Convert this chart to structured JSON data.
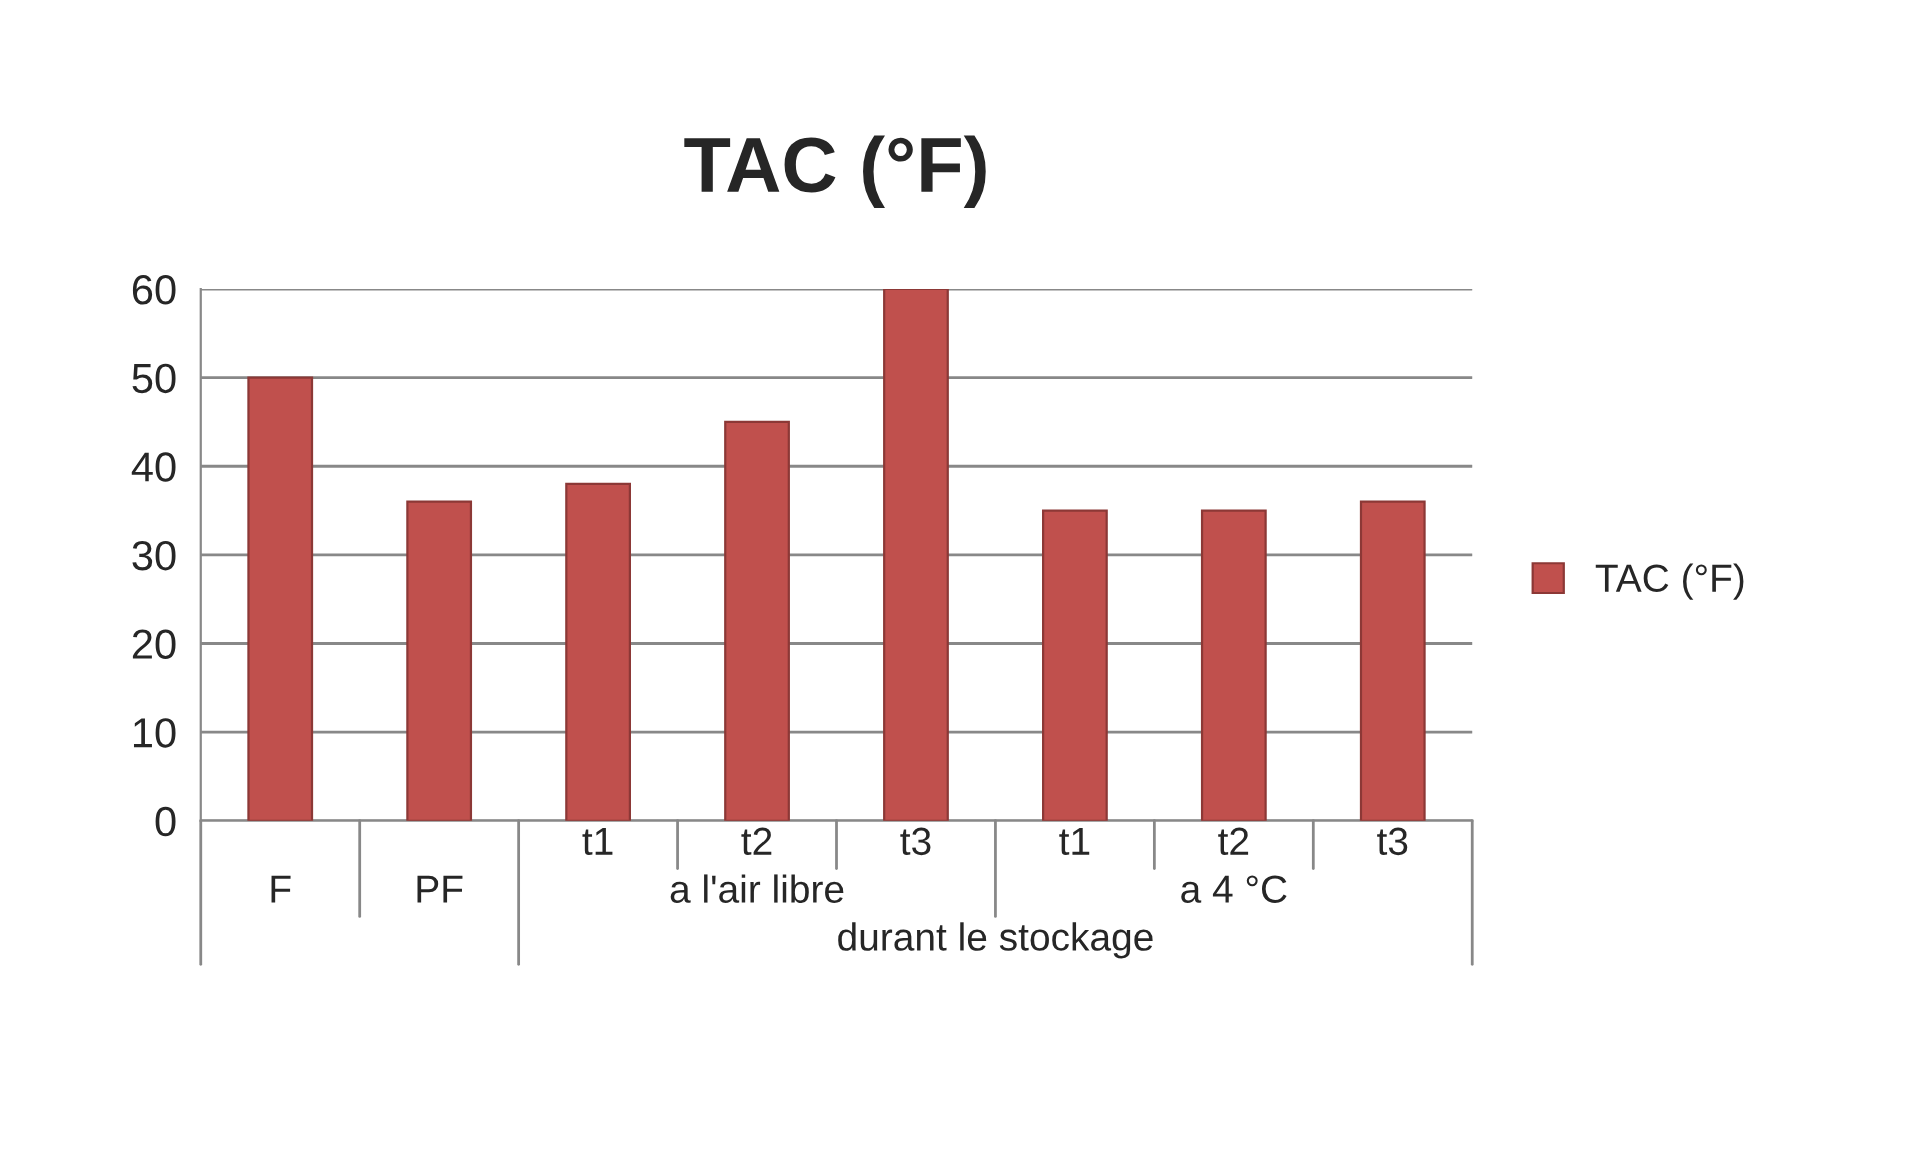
{
  "chart_data": {
    "type": "bar",
    "title": "TAC (°F)",
    "categories": [
      "F",
      "PF",
      "t1",
      "t2",
      "t3",
      "t1",
      "t2",
      "t3"
    ],
    "series": [
      {
        "name": "TAC (°F)",
        "color": "#c0504d",
        "values": [
          50,
          36,
          38,
          45,
          60,
          35,
          35,
          36
        ]
      }
    ],
    "ylim": [
      0,
      60
    ],
    "yticks": [
      0,
      10,
      20,
      30,
      40,
      50,
      60
    ],
    "grid": "y",
    "legend": "right",
    "annotations": [
      "a l'air libre",
      "a 4 °C",
      "durant le stockage"
    ]
  }
}
